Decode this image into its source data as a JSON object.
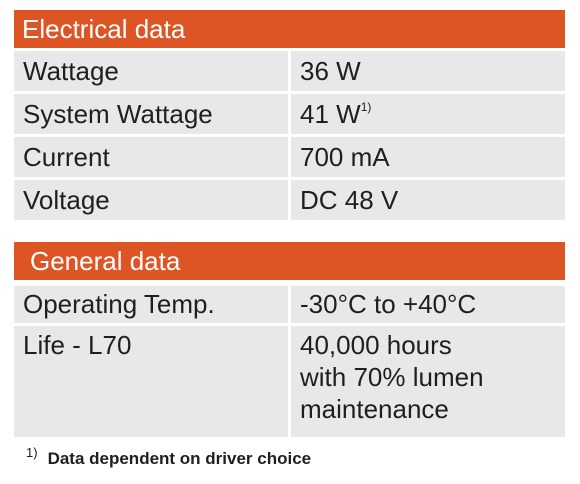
{
  "electrical": {
    "title": "Electrical data",
    "rows": [
      {
        "label": "Wattage",
        "value": "36 W",
        "note": ""
      },
      {
        "label": "System Wattage",
        "value": "41 W",
        "note": "1)"
      },
      {
        "label": "Current",
        "value": "700 mA",
        "note": ""
      },
      {
        "label": "Voltage",
        "value": "DC 48 V",
        "note": ""
      }
    ]
  },
  "general": {
    "title": "General data",
    "rows": [
      {
        "label": "Operating Temp.",
        "value": "-30°C to +40°C"
      },
      {
        "label": "Life - L70",
        "value_lines": [
          "40,000 hours",
          "with 70% lumen",
          "maintenance"
        ]
      }
    ]
  },
  "footnote": {
    "mark": "1)",
    "text": "Data dependent on driver choice"
  },
  "colors": {
    "header_bg": "#dd5425",
    "header_text": "#ffffff",
    "cell_bg": "#e8e8e8",
    "text": "#1f1f1f"
  }
}
